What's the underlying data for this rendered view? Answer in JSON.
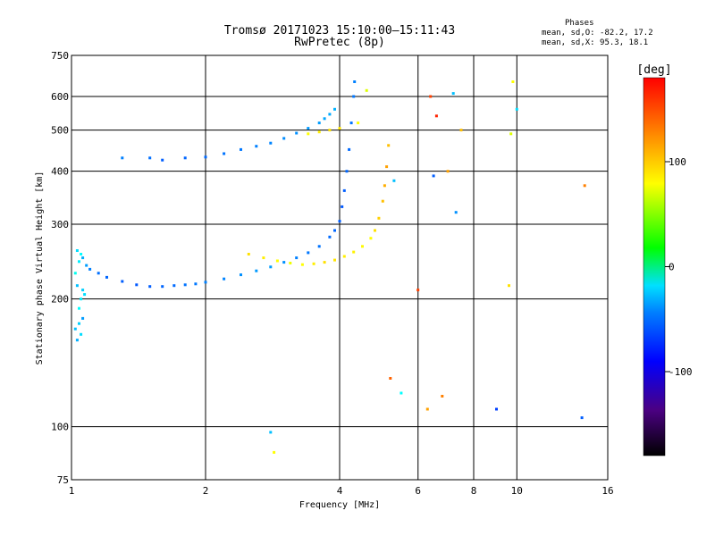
{
  "header": {
    "title_line1": "Tromsø 20171023 15:10:00–15:11:43",
    "title_line2": "RwPretec (8p)",
    "stats_heading": "Phases",
    "stats_o": "mean, sd,O: -82.2, 17.2",
    "stats_x": "mean, sd,X:  95.3, 18.1"
  },
  "chart_data": {
    "type": "scatter",
    "xlabel": "Frequency [MHz]",
    "ylabel": "Stationary phase Virtual Height [km]",
    "xscale": "log",
    "yscale": "log",
    "xlim": [
      1,
      16
    ],
    "ylim": [
      75,
      750
    ],
    "xticks": [
      1,
      2,
      4,
      6,
      8,
      10,
      16
    ],
    "xtick_labels": [
      "1",
      "2",
      "4",
      "6",
      "8",
      "10",
      "16"
    ],
    "yticks": [
      75,
      100,
      200,
      300,
      400,
      500,
      600,
      750
    ],
    "ytick_labels": [
      "75",
      "100",
      "200",
      "300",
      "400",
      "500",
      "600",
      "750"
    ],
    "grid": true,
    "colorbar": {
      "label": "[deg]",
      "range": [
        -180,
        180
      ],
      "ticks": [
        -100,
        0,
        100
      ],
      "tick_labels": [
        "-100",
        "0",
        "100"
      ]
    },
    "series": [
      {
        "points": [
          [
            1.02,
            170,
            -80
          ],
          [
            1.03,
            160,
            -85
          ],
          [
            1.04,
            175,
            -75
          ],
          [
            1.05,
            165,
            -70
          ],
          [
            1.06,
            180,
            -90
          ],
          [
            1.04,
            190,
            -60
          ],
          [
            1.05,
            200,
            -65
          ],
          [
            1.06,
            210,
            -75
          ],
          [
            1.03,
            215,
            -80
          ],
          [
            1.07,
            205,
            -70
          ],
          [
            1.02,
            230,
            -55
          ],
          [
            1.04,
            245,
            -65
          ],
          [
            1.05,
            255,
            -60
          ],
          [
            1.03,
            260,
            -70
          ],
          [
            1.06,
            250,
            -85
          ],
          [
            1.08,
            240,
            -90
          ],
          [
            1.1,
            235,
            -100
          ],
          [
            1.15,
            230,
            -105
          ],
          [
            1.2,
            225,
            -108
          ],
          [
            1.3,
            220,
            -110
          ],
          [
            1.4,
            216,
            -112
          ],
          [
            1.5,
            214,
            -110
          ],
          [
            1.6,
            214,
            -108
          ],
          [
            1.7,
            215,
            -106
          ],
          [
            1.8,
            216,
            -104
          ],
          [
            1.9,
            217,
            -102
          ],
          [
            2.0,
            219,
            -100
          ],
          [
            2.2,
            223,
            -98
          ],
          [
            2.4,
            228,
            -95
          ],
          [
            2.6,
            233,
            -92
          ],
          [
            2.8,
            238,
            -90
          ],
          [
            3.0,
            244,
            -95
          ],
          [
            3.2,
            250,
            -100
          ],
          [
            3.4,
            257,
            -102
          ],
          [
            3.6,
            266,
            -104
          ],
          [
            3.8,
            280,
            -106
          ],
          [
            3.9,
            290,
            -108
          ],
          [
            4.0,
            305,
            -110
          ],
          [
            4.05,
            330,
            -112
          ],
          [
            4.1,
            360,
            -110
          ],
          [
            4.15,
            400,
            -108
          ],
          [
            4.2,
            450,
            -106
          ],
          [
            4.25,
            520,
            -104
          ],
          [
            4.3,
            600,
            -102
          ],
          [
            4.32,
            650,
            -100
          ],
          [
            1.3,
            430,
            -100
          ],
          [
            1.5,
            430,
            -105
          ],
          [
            1.6,
            425,
            -110
          ],
          [
            1.8,
            430,
            -108
          ],
          [
            2.0,
            432,
            -106
          ],
          [
            2.2,
            440,
            -104
          ],
          [
            2.4,
            450,
            -102
          ],
          [
            2.6,
            458,
            -100
          ],
          [
            2.8,
            466,
            -98
          ],
          [
            3.0,
            478,
            -96
          ],
          [
            3.2,
            492,
            -94
          ],
          [
            3.4,
            505,
            -92
          ],
          [
            3.6,
            520,
            -90
          ],
          [
            3.7,
            532,
            -88
          ],
          [
            3.8,
            545,
            -86
          ],
          [
            3.9,
            560,
            -84
          ]
        ]
      },
      {
        "points": [
          [
            2.5,
            255,
            110
          ],
          [
            2.7,
            250,
            105
          ],
          [
            2.9,
            246,
            100
          ],
          [
            3.1,
            243,
            95
          ],
          [
            3.3,
            241,
            100
          ],
          [
            3.5,
            242,
            105
          ],
          [
            3.7,
            244,
            110
          ],
          [
            3.9,
            247,
            108
          ],
          [
            4.1,
            252,
            106
          ],
          [
            4.3,
            258,
            104
          ],
          [
            4.5,
            266,
            102
          ],
          [
            4.7,
            278,
            100
          ],
          [
            4.8,
            290,
            110
          ],
          [
            4.9,
            310,
            115
          ],
          [
            5.0,
            340,
            120
          ],
          [
            5.05,
            370,
            125
          ],
          [
            5.1,
            410,
            130
          ],
          [
            5.15,
            460,
            120
          ],
          [
            3.4,
            490,
            100
          ],
          [
            3.6,
            495,
            105
          ],
          [
            3.8,
            500,
            110
          ],
          [
            4.0,
            505,
            108
          ],
          [
            4.4,
            520,
            100
          ],
          [
            4.6,
            620,
            90
          ],
          [
            5.3,
            380,
            -80
          ],
          [
            5.2,
            130,
            150
          ],
          [
            5.5,
            120,
            -60
          ],
          [
            6.0,
            210,
            160
          ],
          [
            6.3,
            110,
            130
          ],
          [
            6.4,
            600,
            160
          ],
          [
            6.6,
            540,
            170
          ],
          [
            6.5,
            390,
            -110
          ],
          [
            6.8,
            118,
            140
          ],
          [
            7.0,
            400,
            130
          ],
          [
            7.2,
            610,
            -80
          ],
          [
            7.3,
            320,
            -95
          ],
          [
            7.5,
            500,
            120
          ],
          [
            9.0,
            110,
            -120
          ],
          [
            9.8,
            650,
            100
          ],
          [
            9.7,
            490,
            90
          ],
          [
            10.0,
            560,
            -70
          ],
          [
            9.6,
            215,
            110
          ],
          [
            14.0,
            105,
            -110
          ],
          [
            14.2,
            370,
            140
          ],
          [
            2.8,
            97,
            -80
          ],
          [
            2.85,
            87,
            100
          ]
        ]
      }
    ]
  }
}
